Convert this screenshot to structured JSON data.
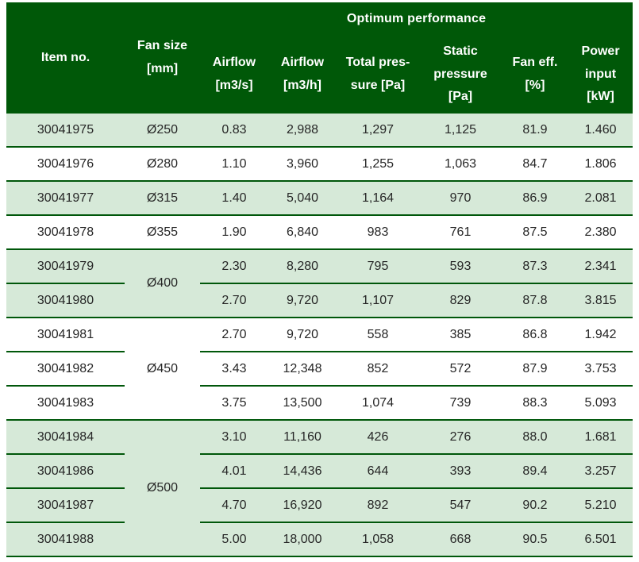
{
  "colors": {
    "header_bg": "#005808",
    "row_green": "#d6e9d8",
    "divider_line": "#00570a",
    "header_text": "#ffffff",
    "body_text": "#262626"
  },
  "table": {
    "header": {
      "group_title": "Optimum performance",
      "item_no": "Item no.",
      "fan_size": "Fan size\n[mm]",
      "columns": [
        "Airflow\n[m3/s]",
        "Airflow\n[m3/h]",
        "Total pres-\nsure [Pa]",
        "Static\npressure\n[Pa]",
        "Fan eff.\n[%]",
        "Power\ninput\n[kW]"
      ]
    },
    "rows": [
      {
        "item": "30041975",
        "fan": "Ø250",
        "fan_span": 1,
        "values": [
          "0.83",
          "2,988",
          "1,297",
          "1,125",
          "81.9",
          "1.460"
        ],
        "shade": "green"
      },
      {
        "item": "30041976",
        "fan": "Ø280",
        "fan_span": 1,
        "values": [
          "1.10",
          "3,960",
          "1,255",
          "1,063",
          "84.7",
          "1.806"
        ],
        "shade": "white"
      },
      {
        "item": "30041977",
        "fan": "Ø315",
        "fan_span": 1,
        "values": [
          "1.40",
          "5,040",
          "1,164",
          "970",
          "86.9",
          "2.081"
        ],
        "shade": "green"
      },
      {
        "item": "30041978",
        "fan": "Ø355",
        "fan_span": 1,
        "values": [
          "1.90",
          "6,840",
          "983",
          "761",
          "87.5",
          "2.380"
        ],
        "shade": "white"
      },
      {
        "item": "30041979",
        "fan": "Ø400",
        "fan_span": 2,
        "values": [
          "2.30",
          "8,280",
          "795",
          "593",
          "87.3",
          "2.341"
        ],
        "shade": "green"
      },
      {
        "item": "30041980",
        "values": [
          "2.70",
          "9,720",
          "1,107",
          "829",
          "87.8",
          "3.815"
        ],
        "shade": "green"
      },
      {
        "item": "30041981",
        "fan": "Ø450",
        "fan_span": 3,
        "values": [
          "2.70",
          "9,720",
          "558",
          "385",
          "86.8",
          "1.942"
        ],
        "shade": "white"
      },
      {
        "item": "30041982",
        "values": [
          "3.43",
          "12,348",
          "852",
          "572",
          "87.9",
          "3.753"
        ],
        "shade": "white"
      },
      {
        "item": "30041983",
        "values": [
          "3.75",
          "13,500",
          "1,074",
          "739",
          "88.3",
          "5.093"
        ],
        "shade": "white"
      },
      {
        "item": "30041984",
        "fan": "Ø500",
        "fan_span": 4,
        "values": [
          "3.10",
          "11,160",
          "426",
          "276",
          "88.0",
          "1.681"
        ],
        "shade": "green"
      },
      {
        "item": "30041986",
        "values": [
          "4.01",
          "14,436",
          "644",
          "393",
          "89.4",
          "3.257"
        ],
        "shade": "green"
      },
      {
        "item": "30041987",
        "values": [
          "4.70",
          "16,920",
          "892",
          "547",
          "90.2",
          "5.210"
        ],
        "shade": "green"
      },
      {
        "item": "30041988",
        "values": [
          "5.00",
          "18,000",
          "1,058",
          "668",
          "90.5",
          "6.501"
        ],
        "shade": "green"
      }
    ]
  }
}
